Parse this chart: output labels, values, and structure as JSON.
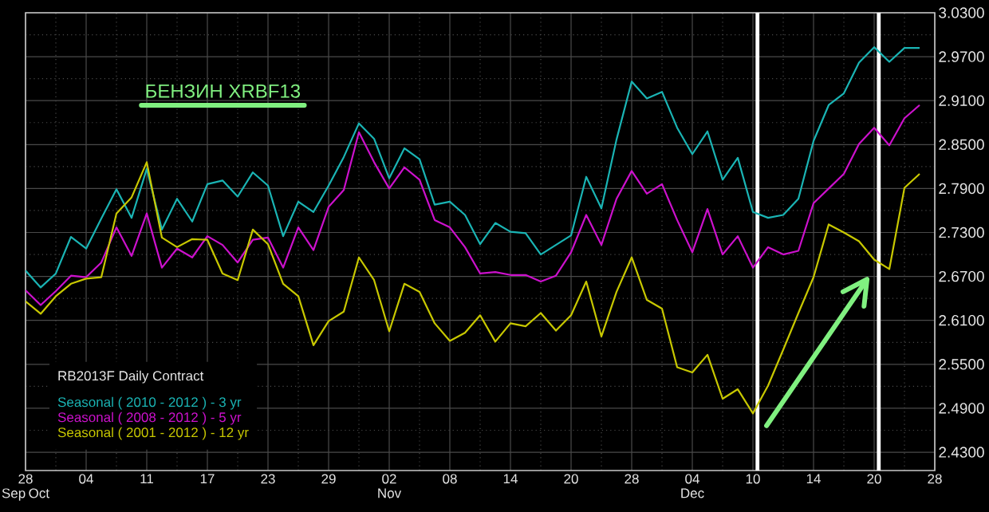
{
  "chart_data": {
    "type": "line",
    "title": "БЕНЗИН XRBF13",
    "legend_title": "RB2013F Daily Contract",
    "categories": [
      "28 Sep Oct",
      null,
      null,
      null,
      "04",
      null,
      null,
      null,
      "11",
      null,
      null,
      null,
      "17",
      null,
      null,
      null,
      "23",
      null,
      null,
      null,
      "29",
      null,
      null,
      null,
      "02 Nov",
      null,
      null,
      null,
      "08",
      null,
      null,
      null,
      "14",
      null,
      null,
      null,
      "20",
      null,
      null,
      null,
      "28",
      null,
      null,
      null,
      "04 Dec",
      null,
      null,
      null,
      "10",
      null,
      null,
      null,
      "14",
      null,
      null,
      null,
      "20",
      null,
      null,
      null,
      "28"
    ],
    "ylim": [
      2.405,
      3.03
    ],
    "yticks": [
      {
        "value": 2.43,
        "label": "2.4300"
      },
      {
        "value": 2.49,
        "label": "2.4900"
      },
      {
        "value": 2.55,
        "label": "2.5500"
      },
      {
        "value": 2.61,
        "label": "2.6100"
      },
      {
        "value": 2.67,
        "label": "2.6700"
      },
      {
        "value": 2.73,
        "label": "2.7300"
      },
      {
        "value": 2.79,
        "label": "2.7900"
      },
      {
        "value": 2.85,
        "label": "2.8500"
      },
      {
        "value": 2.91,
        "label": "2.9100"
      },
      {
        "value": 2.97,
        "label": "2.9700"
      },
      {
        "value": 3.03,
        "label": "3.0300"
      }
    ],
    "series": [
      {
        "name": "Seasonal ( 2010 - 2012 ) - 3 yr",
        "color": "#1ab4b4",
        "values": [
          2.678,
          2.655,
          2.674,
          2.724,
          2.708,
          2.749,
          2.789,
          2.75,
          2.817,
          2.734,
          2.776,
          2.745,
          2.796,
          2.801,
          2.779,
          2.812,
          2.794,
          2.725,
          2.772,
          2.758,
          2.794,
          2.833,
          2.879,
          2.858,
          2.804,
          2.845,
          2.83,
          2.768,
          2.772,
          2.754,
          2.714,
          2.743,
          2.731,
          2.729,
          2.7,
          2.713,
          2.726,
          2.806,
          2.763,
          2.857,
          2.936,
          2.913,
          2.922,
          2.873,
          2.837,
          2.868,
          2.802,
          2.832,
          2.758,
          2.75,
          2.754,
          2.776,
          2.855,
          2.904,
          2.92,
          2.962,
          2.983,
          2.963,
          2.982,
          2.982,
          null
        ]
      },
      {
        "name": "Seasonal ( 2008 - 2012 ) - 5 yr",
        "color": "#cc11cc",
        "values": [
          2.651,
          2.631,
          2.65,
          2.671,
          2.669,
          2.689,
          2.737,
          2.698,
          2.756,
          2.682,
          2.708,
          2.696,
          2.725,
          2.713,
          2.689,
          2.72,
          2.723,
          2.682,
          2.737,
          2.706,
          2.765,
          2.788,
          2.867,
          2.826,
          2.79,
          2.819,
          2.802,
          2.747,
          2.737,
          2.71,
          2.674,
          2.676,
          2.672,
          2.672,
          2.663,
          2.671,
          2.703,
          2.754,
          2.713,
          2.776,
          2.814,
          2.783,
          2.796,
          2.747,
          2.703,
          2.762,
          2.7,
          2.725,
          2.682,
          2.71,
          2.7,
          2.705,
          2.77,
          2.79,
          2.81,
          2.851,
          2.873,
          2.849,
          2.886,
          2.904,
          null
        ]
      },
      {
        "name": "Seasonal ( 2001 - 2012 ) - 12 yr",
        "color": "#c8c800",
        "values": [
          2.636,
          2.619,
          2.643,
          2.66,
          2.667,
          2.669,
          2.756,
          2.778,
          2.826,
          2.723,
          2.71,
          2.721,
          2.72,
          2.674,
          2.665,
          2.734,
          2.714,
          2.66,
          2.643,
          2.576,
          2.609,
          2.622,
          2.696,
          2.665,
          2.595,
          2.66,
          2.649,
          2.606,
          2.582,
          2.593,
          2.617,
          2.581,
          2.606,
          2.602,
          2.62,
          2.596,
          2.617,
          2.663,
          2.588,
          2.649,
          2.696,
          2.638,
          2.626,
          2.546,
          2.539,
          2.563,
          2.503,
          2.516,
          2.483,
          2.521,
          2.57,
          2.62,
          2.669,
          2.741,
          2.73,
          2.718,
          2.693,
          2.68,
          2.791,
          2.81,
          null
        ]
      }
    ],
    "grid": true,
    "legend": "bottom left"
  }
}
